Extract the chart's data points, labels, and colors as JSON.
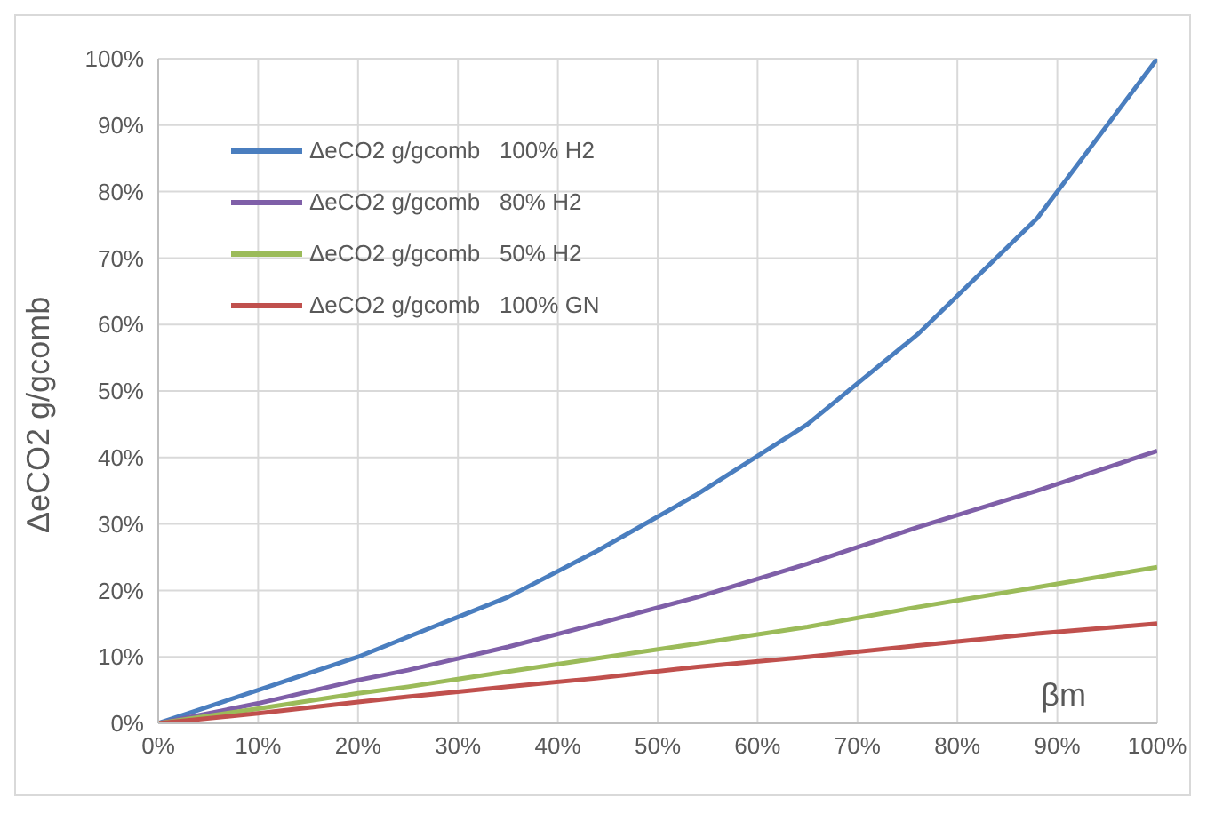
{
  "chart_data": {
    "type": "line",
    "xlabel": "βm",
    "ylabel": "ΔeCO2 g/gcomb",
    "x": [
      0,
      10,
      20,
      25,
      35,
      44,
      54,
      65,
      76,
      88,
      100
    ],
    "xlim": [
      0,
      100
    ],
    "xticks": [
      {
        "value": 0,
        "label": "0%"
      },
      {
        "value": 10,
        "label": "10%"
      },
      {
        "value": 20,
        "label": "20%"
      },
      {
        "value": 30,
        "label": "30%"
      },
      {
        "value": 40,
        "label": "40%"
      },
      {
        "value": 50,
        "label": "50%"
      },
      {
        "value": 60,
        "label": "60%"
      },
      {
        "value": 70,
        "label": "70%"
      },
      {
        "value": 80,
        "label": "80%"
      },
      {
        "value": 90,
        "label": "90%"
      },
      {
        "value": 100,
        "label": "100%"
      }
    ],
    "ylim": [
      0,
      100
    ],
    "yticks": [
      {
        "value": 0,
        "label": "0%"
      },
      {
        "value": 10,
        "label": "10%"
      },
      {
        "value": 20,
        "label": "20%"
      },
      {
        "value": 30,
        "label": "30%"
      },
      {
        "value": 40,
        "label": "40%"
      },
      {
        "value": 50,
        "label": "50%"
      },
      {
        "value": 60,
        "label": "60%"
      },
      {
        "value": 70,
        "label": "70%"
      },
      {
        "value": 80,
        "label": "80%"
      },
      {
        "value": 90,
        "label": "90%"
      },
      {
        "value": 100,
        "label": "100%"
      }
    ],
    "grid": true,
    "legend": "top left",
    "marker": "none",
    "line_style": "solid",
    "series": [
      {
        "name": "ΔeCO2 g/gcomb   100% H2",
        "color": "#4a7ebf",
        "values": [
          0,
          5,
          10,
          13,
          19,
          26,
          34.5,
          45,
          58.5,
          76,
          100
        ]
      },
      {
        "name": "ΔeCO2 g/gcomb   80% H2",
        "color": "#7f5fa8",
        "values": [
          0,
          3,
          6.5,
          8,
          11.5,
          15,
          19,
          24,
          29.5,
          35,
          41
        ]
      },
      {
        "name": "ΔeCO2 g/gcomb   50% H2",
        "color": "#9bbb59",
        "values": [
          0,
          2.2,
          4.5,
          5.5,
          7.8,
          9.8,
          12,
          14.5,
          17.5,
          20.5,
          23.5
        ]
      },
      {
        "name": "ΔeCO2 g/gcomb   100% GN",
        "color": "#c0504d",
        "values": [
          0,
          1.5,
          3.2,
          4,
          5.5,
          6.8,
          8.5,
          10,
          11.7,
          13.5,
          15
        ]
      }
    ]
  }
}
